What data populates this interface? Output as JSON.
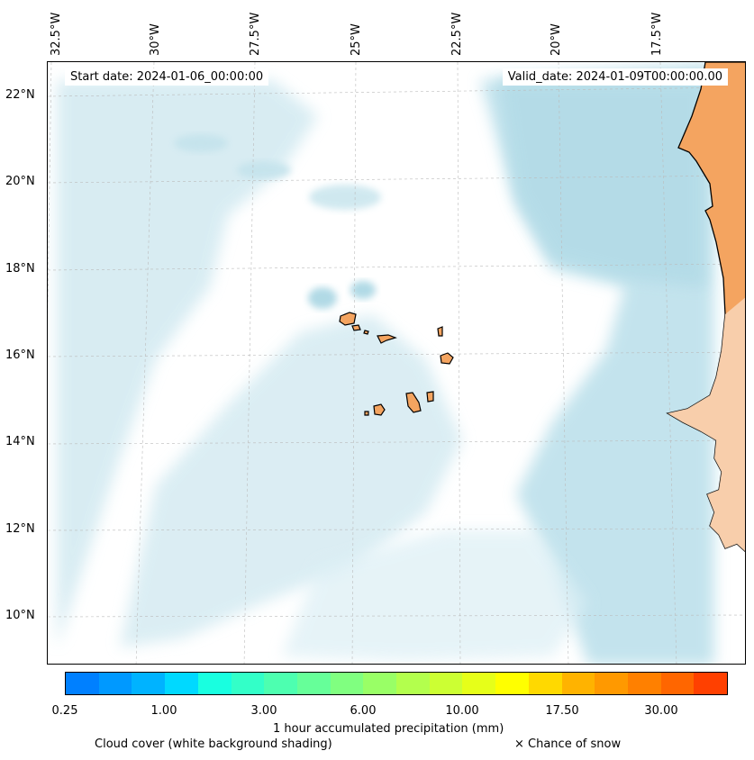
{
  "map": {
    "start_date": "Start date: 2024-01-06_00:00:00",
    "valid_date": "Valid_date: 2024-01-09T00:00:00.00",
    "longitude_labels": [
      "32.5°W",
      "30°W",
      "27.5°W",
      "25°W",
      "22.5°W",
      "20°W",
      "17.5°W"
    ],
    "latitude_labels": [
      "22°N",
      "20°N",
      "18°N",
      "16°N",
      "14°N",
      "12°N",
      "10°N"
    ],
    "land_color": "#f4a460",
    "cloud_color": "#a8d8e6"
  },
  "colorbar": {
    "colors": [
      "#0080ff",
      "#0099ff",
      "#00b3ff",
      "#00d9ff",
      "#19ffe0",
      "#33ffc8",
      "#4dffb0",
      "#66ff99",
      "#80ff80",
      "#99ff66",
      "#b3ff4d",
      "#ccff33",
      "#e6ff19",
      "#ffff00",
      "#ffd900",
      "#ffb300",
      "#ff9900",
      "#ff8000",
      "#ff6600",
      "#ff4000"
    ],
    "tick_labels": [
      "0.25",
      "1.00",
      "3.00",
      "6.00",
      "10.00",
      "17.50",
      "30.00"
    ],
    "label": "1 hour accumulated precipitation (mm)"
  },
  "legend": {
    "cloud_cover": "Cloud cover (white background shading)",
    "snow": "× Chance of snow"
  }
}
